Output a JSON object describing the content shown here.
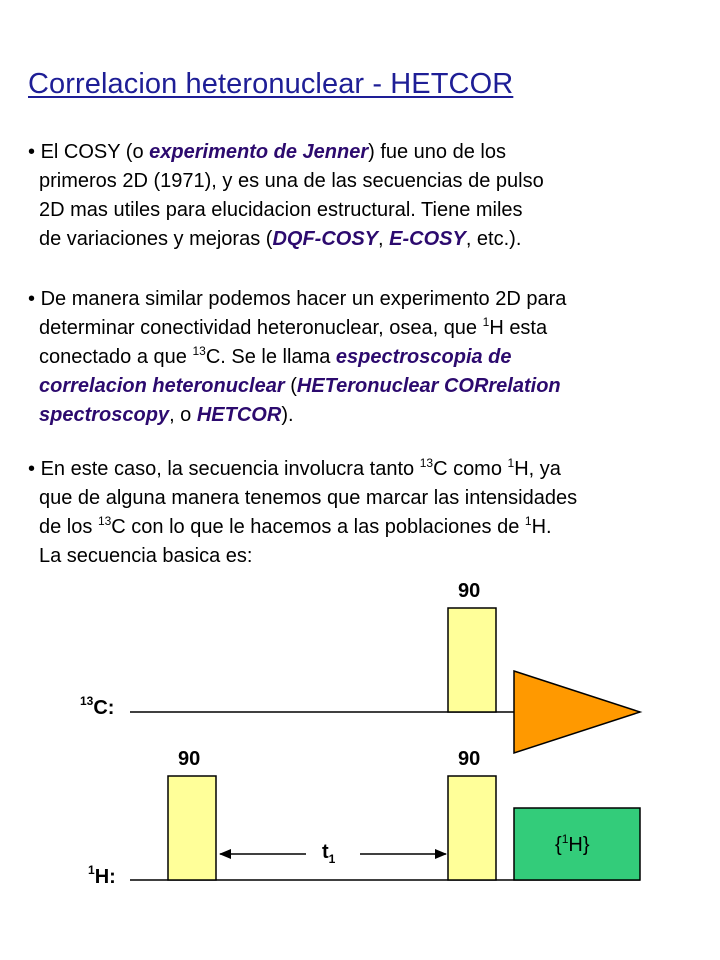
{
  "title": "Correlacion heteronuclear - HETCOR",
  "bullet": "•",
  "p1": {
    "l1a": "El COSY (o ",
    "l1b": "experimento de Jenner",
    "l1c": ") fue uno de los",
    "l2": "primeros 2D (1971), y es una de las secuencias de pulso",
    "l3": "2D mas utiles para elucidacion estructural. Tiene miles",
    "l4a": "de variaciones y mejoras (",
    "l4b": "DQF-COSY",
    "l4c": ", ",
    "l4d": "E-COSY",
    "l4e": ", etc.)."
  },
  "p2": {
    "l1": "De manera similar podemos hacer un experimento 2D para",
    "l2a": "determinar conectividad heteronuclear, osea, que ",
    "l2sup": "1",
    "l2b": "H esta",
    "l3a": "conectado a que ",
    "l3sup": "13",
    "l3b": "C. Se le llama ",
    "l3c": "espectroscopia de",
    "l4a": "correlacion heteronuclear",
    "l4b": " (",
    "l4c": "HETeronuclear CORrelation",
    "l5a": "spectroscopy",
    "l5b": ", o ",
    "l5c": "HETCOR",
    "l5d": ")."
  },
  "p3": {
    "l1a": "En este caso, la secuencia involucra tanto ",
    "l1sup1": "13",
    "l1b": "C como ",
    "l1sup2": "1",
    "l1c": "H, ya",
    "l2": "que de alguna manera tenemos que marcar las intensidades",
    "l3a": "de los ",
    "l3sup1": "13",
    "l3b": "C con lo que le hacemos a las poblaciones de ",
    "l3sup2": "1",
    "l3c": "H.",
    "l4": "La secuencia basica es:"
  },
  "diagram": {
    "c_sup": "13",
    "c_label": "C:",
    "h_sup": "1",
    "h_label": "H:",
    "pulse_c": "90",
    "pulse_h1": "90",
    "pulse_h2": "90",
    "t_label": "t",
    "t_sub": "1",
    "decouple_open": "{",
    "decouple_sup": "1",
    "decouple_h": "H}"
  },
  "colors": {
    "title": "#1e1e96",
    "emphasis": "#2c0a6e",
    "pulse_fill": "#ffff99",
    "fid_fill": "#ff9900",
    "decouple_fill": "#33cc7a"
  }
}
